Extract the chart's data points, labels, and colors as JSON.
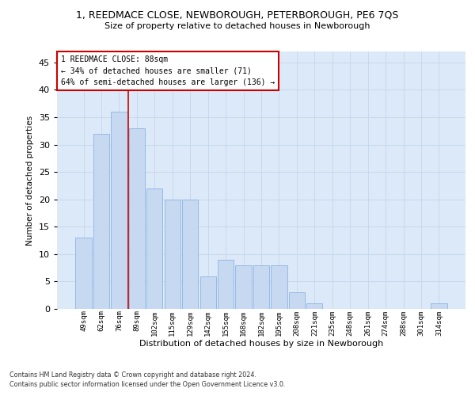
{
  "title1": "1, REEDMACE CLOSE, NEWBOROUGH, PETERBOROUGH, PE6 7QS",
  "title2": "Size of property relative to detached houses in Newborough",
  "xlabel": "Distribution of detached houses by size in Newborough",
  "ylabel": "Number of detached properties",
  "footer1": "Contains HM Land Registry data © Crown copyright and database right 2024.",
  "footer2": "Contains public sector information licensed under the Open Government Licence v3.0.",
  "annotation_line1": "1 REEDMACE CLOSE: 88sqm",
  "annotation_line2": "← 34% of detached houses are smaller (71)",
  "annotation_line3": "64% of semi-detached houses are larger (136) →",
  "bar_labels": [
    "49sqm",
    "62sqm",
    "76sqm",
    "89sqm",
    "102sqm",
    "115sqm",
    "129sqm",
    "142sqm",
    "155sqm",
    "168sqm",
    "182sqm",
    "195sqm",
    "208sqm",
    "221sqm",
    "235sqm",
    "248sqm",
    "261sqm",
    "274sqm",
    "288sqm",
    "301sqm",
    "314sqm"
  ],
  "bar_values": [
    13,
    32,
    36,
    33,
    22,
    20,
    20,
    6,
    9,
    8,
    8,
    8,
    3,
    1,
    0,
    0,
    0,
    0,
    0,
    0,
    1
  ],
  "bar_color": "#c6d9f1",
  "bar_edgecolor": "#8db3e2",
  "red_line_x": 3,
  "ylim": [
    0,
    47
  ],
  "yticks": [
    0,
    5,
    10,
    15,
    20,
    25,
    30,
    35,
    40,
    45
  ],
  "grid_color": "#c8d8ec",
  "background_color": "#dce9f8",
  "annotation_box_color": "#ffffff",
  "annotation_box_edgecolor": "#cc0000",
  "red_line_color": "#cc0000"
}
